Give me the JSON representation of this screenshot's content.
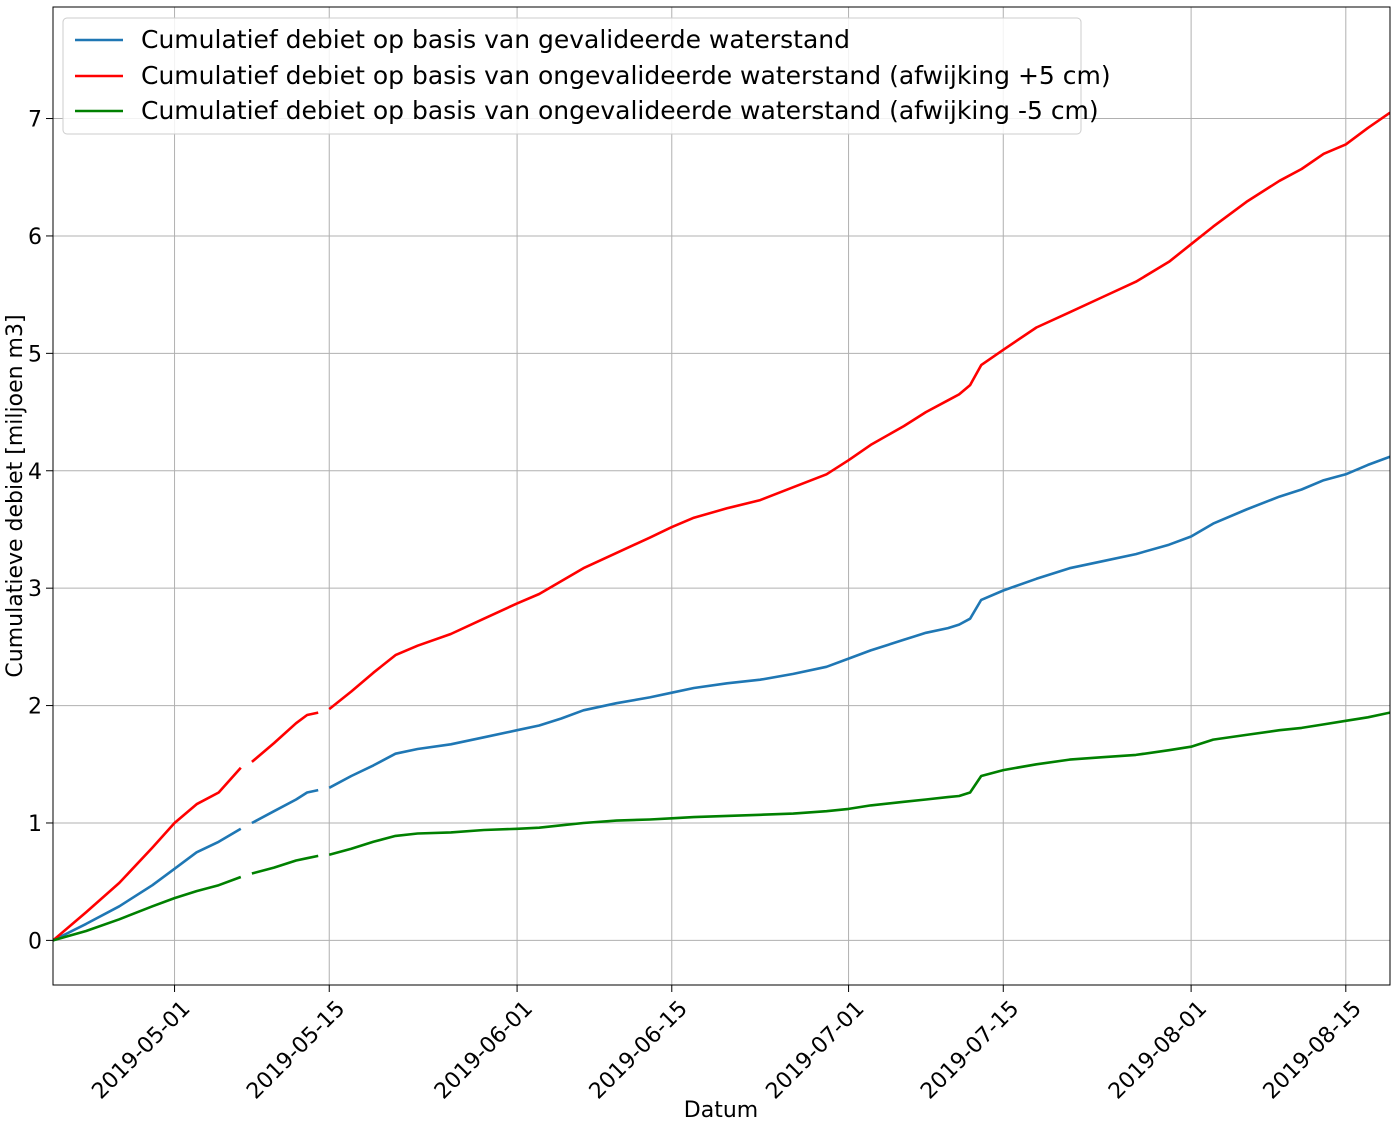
{
  "chart_data": {
    "type": "line",
    "title": "",
    "xlabel": "Datum",
    "ylabel": "Cumulatieve debiet [miljoen m3]",
    "x_range": [
      "2019-04-20",
      "2019-08-19"
    ],
    "ylim": [
      -0.38,
      7.95
    ],
    "grid": true,
    "legend_position": "top-left",
    "x_ticks": [
      "2019-05-01",
      "2019-05-15",
      "2019-06-01",
      "2019-06-15",
      "2019-07-01",
      "2019-07-15",
      "2019-08-01",
      "2019-08-15"
    ],
    "y_ticks": [
      0,
      1,
      2,
      3,
      4,
      5,
      6,
      7
    ],
    "series": [
      {
        "name": "Cumulatief debiet op basis van gevalideerde waterstand",
        "color": "#1f77b4",
        "segments": [
          [
            [
              "2019-04-20",
              0
            ],
            [
              "2019-04-23",
              0.14
            ],
            [
              "2019-04-26",
              0.29
            ],
            [
              "2019-04-29",
              0.47
            ],
            [
              "2019-05-01",
              0.61
            ],
            [
              "2019-05-03",
              0.75
            ],
            [
              "2019-05-05",
              0.84
            ],
            [
              "2019-05-07",
              0.95
            ]
          ],
          [
            [
              "2019-05-08",
              1.0
            ],
            [
              "2019-05-10",
              1.1
            ],
            [
              "2019-05-12",
              1.2
            ],
            [
              "2019-05-13",
              1.26
            ],
            [
              "2019-05-14",
              1.28
            ]
          ],
          [
            [
              "2019-05-15",
              1.3
            ],
            [
              "2019-05-17",
              1.4
            ],
            [
              "2019-05-19",
              1.49
            ],
            [
              "2019-05-21",
              1.59
            ],
            [
              "2019-05-23",
              1.63
            ],
            [
              "2019-05-26",
              1.67
            ],
            [
              "2019-05-29",
              1.73
            ],
            [
              "2019-06-01",
              1.79
            ],
            [
              "2019-06-03",
              1.83
            ],
            [
              "2019-06-05",
              1.89
            ],
            [
              "2019-06-07",
              1.96
            ],
            [
              "2019-06-10",
              2.02
            ],
            [
              "2019-06-13",
              2.07
            ],
            [
              "2019-06-15",
              2.11
            ],
            [
              "2019-06-17",
              2.15
            ],
            [
              "2019-06-20",
              2.19
            ],
            [
              "2019-06-23",
              2.22
            ],
            [
              "2019-06-26",
              2.27
            ],
            [
              "2019-06-29",
              2.33
            ],
            [
              "2019-07-01",
              2.4
            ],
            [
              "2019-07-03",
              2.47
            ],
            [
              "2019-07-06",
              2.56
            ],
            [
              "2019-07-08",
              2.62
            ],
            [
              "2019-07-10",
              2.66
            ],
            [
              "2019-07-11",
              2.69
            ],
            [
              "2019-07-12",
              2.74
            ],
            [
              "2019-07-13",
              2.9
            ],
            [
              "2019-07-15",
              2.98
            ],
            [
              "2019-07-18",
              3.08
            ],
            [
              "2019-07-21",
              3.17
            ],
            [
              "2019-07-24",
              3.23
            ],
            [
              "2019-07-27",
              3.29
            ],
            [
              "2019-07-30",
              3.37
            ],
            [
              "2019-08-01",
              3.44
            ],
            [
              "2019-08-03",
              3.55
            ],
            [
              "2019-08-06",
              3.67
            ],
            [
              "2019-08-09",
              3.78
            ],
            [
              "2019-08-11",
              3.84
            ],
            [
              "2019-08-13",
              3.92
            ],
            [
              "2019-08-15",
              3.97
            ],
            [
              "2019-08-17",
              4.05
            ],
            [
              "2019-08-19",
              4.12
            ]
          ]
        ]
      },
      {
        "name": "Cumulatief debiet op basis van ongevalideerde waterstand (afwijking +5 cm)",
        "color": "#ff0000",
        "segments": [
          [
            [
              "2019-04-20",
              0
            ],
            [
              "2019-04-23",
              0.24
            ],
            [
              "2019-04-26",
              0.49
            ],
            [
              "2019-04-29",
              0.79
            ],
            [
              "2019-05-01",
              1.0
            ],
            [
              "2019-05-03",
              1.16
            ],
            [
              "2019-05-05",
              1.26
            ],
            [
              "2019-05-07",
              1.47
            ]
          ],
          [
            [
              "2019-05-08",
              1.52
            ],
            [
              "2019-05-10",
              1.68
            ],
            [
              "2019-05-12",
              1.85
            ],
            [
              "2019-05-13",
              1.92
            ],
            [
              "2019-05-14",
              1.94
            ]
          ],
          [
            [
              "2019-05-15",
              1.97
            ],
            [
              "2019-05-17",
              2.12
            ],
            [
              "2019-05-19",
              2.28
            ],
            [
              "2019-05-21",
              2.43
            ],
            [
              "2019-05-23",
              2.51
            ],
            [
              "2019-05-26",
              2.61
            ],
            [
              "2019-05-29",
              2.74
            ],
            [
              "2019-06-01",
              2.87
            ],
            [
              "2019-06-03",
              2.95
            ],
            [
              "2019-06-05",
              3.06
            ],
            [
              "2019-06-07",
              3.17
            ],
            [
              "2019-06-10",
              3.3
            ],
            [
              "2019-06-13",
              3.43
            ],
            [
              "2019-06-15",
              3.52
            ],
            [
              "2019-06-17",
              3.6
            ],
            [
              "2019-06-20",
              3.68
            ],
            [
              "2019-06-23",
              3.75
            ],
            [
              "2019-06-26",
              3.86
            ],
            [
              "2019-06-29",
              3.97
            ],
            [
              "2019-07-01",
              4.09
            ],
            [
              "2019-07-03",
              4.22
            ],
            [
              "2019-07-06",
              4.38
            ],
            [
              "2019-07-08",
              4.5
            ],
            [
              "2019-07-10",
              4.6
            ],
            [
              "2019-07-11",
              4.65
            ],
            [
              "2019-07-12",
              4.73
            ],
            [
              "2019-07-13",
              4.9
            ],
            [
              "2019-07-15",
              5.03
            ],
            [
              "2019-07-18",
              5.22
            ],
            [
              "2019-07-21",
              5.35
            ],
            [
              "2019-07-24",
              5.48
            ],
            [
              "2019-07-27",
              5.61
            ],
            [
              "2019-07-30",
              5.78
            ],
            [
              "2019-08-01",
              5.93
            ],
            [
              "2019-08-03",
              6.08
            ],
            [
              "2019-08-06",
              6.29
            ],
            [
              "2019-08-09",
              6.47
            ],
            [
              "2019-08-11",
              6.57
            ],
            [
              "2019-08-13",
              6.7
            ],
            [
              "2019-08-15",
              6.78
            ],
            [
              "2019-08-17",
              6.92
            ],
            [
              "2019-08-19",
              7.05
            ]
          ]
        ]
      },
      {
        "name": "Cumulatief debiet op basis van ongevalideerde waterstand (afwijking -5 cm)",
        "color": "#008000",
        "segments": [
          [
            [
              "2019-04-20",
              0
            ],
            [
              "2019-04-23",
              0.08
            ],
            [
              "2019-04-26",
              0.18
            ],
            [
              "2019-04-29",
              0.29
            ],
            [
              "2019-05-01",
              0.36
            ],
            [
              "2019-05-03",
              0.42
            ],
            [
              "2019-05-05",
              0.47
            ],
            [
              "2019-05-07",
              0.54
            ]
          ],
          [
            [
              "2019-05-08",
              0.57
            ],
            [
              "2019-05-10",
              0.62
            ],
            [
              "2019-05-12",
              0.68
            ],
            [
              "2019-05-13",
              0.7
            ],
            [
              "2019-05-14",
              0.72
            ]
          ],
          [
            [
              "2019-05-15",
              0.73
            ],
            [
              "2019-05-17",
              0.78
            ],
            [
              "2019-05-19",
              0.84
            ],
            [
              "2019-05-21",
              0.89
            ],
            [
              "2019-05-23",
              0.91
            ],
            [
              "2019-05-26",
              0.92
            ],
            [
              "2019-05-29",
              0.94
            ],
            [
              "2019-06-01",
              0.95
            ],
            [
              "2019-06-03",
              0.96
            ],
            [
              "2019-06-05",
              0.98
            ],
            [
              "2019-06-07",
              1.0
            ],
            [
              "2019-06-10",
              1.02
            ],
            [
              "2019-06-13",
              1.03
            ],
            [
              "2019-06-15",
              1.04
            ],
            [
              "2019-06-17",
              1.05
            ],
            [
              "2019-06-20",
              1.06
            ],
            [
              "2019-06-23",
              1.07
            ],
            [
              "2019-06-26",
              1.08
            ],
            [
              "2019-06-29",
              1.1
            ],
            [
              "2019-07-01",
              1.12
            ],
            [
              "2019-07-03",
              1.15
            ],
            [
              "2019-07-06",
              1.18
            ],
            [
              "2019-07-08",
              1.2
            ],
            [
              "2019-07-10",
              1.22
            ],
            [
              "2019-07-11",
              1.23
            ],
            [
              "2019-07-12",
              1.26
            ],
            [
              "2019-07-13",
              1.4
            ],
            [
              "2019-07-15",
              1.45
            ],
            [
              "2019-07-18",
              1.5
            ],
            [
              "2019-07-21",
              1.54
            ],
            [
              "2019-07-24",
              1.56
            ],
            [
              "2019-07-27",
              1.58
            ],
            [
              "2019-07-30",
              1.62
            ],
            [
              "2019-08-01",
              1.65
            ],
            [
              "2019-08-03",
              1.71
            ],
            [
              "2019-08-06",
              1.75
            ],
            [
              "2019-08-09",
              1.79
            ],
            [
              "2019-08-11",
              1.81
            ],
            [
              "2019-08-13",
              1.84
            ],
            [
              "2019-08-15",
              1.87
            ],
            [
              "2019-08-17",
              1.9
            ],
            [
              "2019-08-19",
              1.94
            ]
          ]
        ]
      }
    ]
  }
}
